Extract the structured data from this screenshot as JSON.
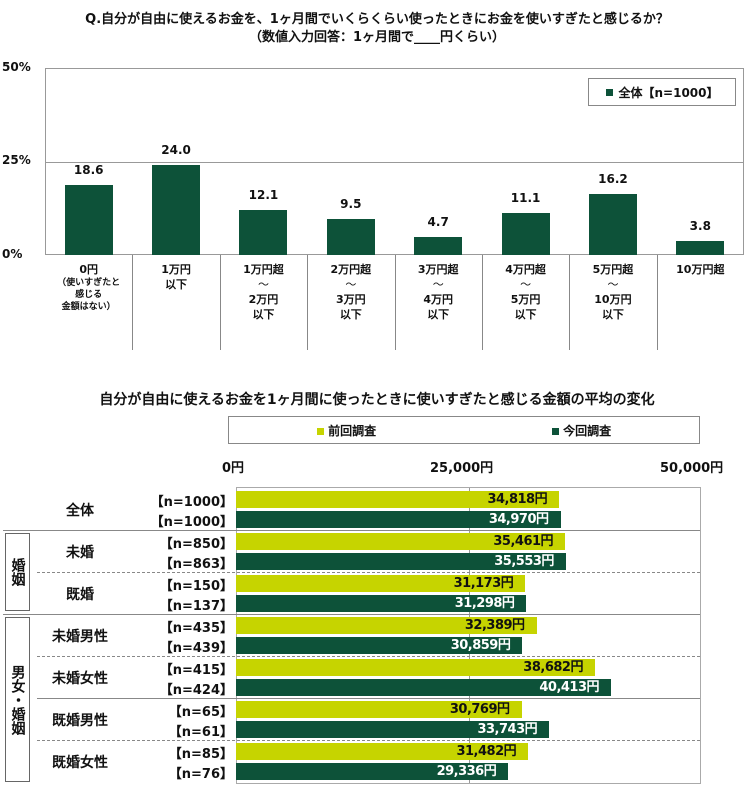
{
  "chart_data": [
    {
      "type": "bar",
      "title": "Q.自分が自由に使えるお金を、1ヶ月間でいくらくらい使ったときにお金を使いすぎたと感じるか？",
      "subtitle": "（数値入力回答：1ヶ月間で____円くらい）",
      "categories": [
        {
          "main": "0円",
          "sub": "（使いすぎたと感じる金額はない）"
        },
        {
          "main": "1万円以下"
        },
        {
          "main": "1万円超～2万円以下"
        },
        {
          "main": "2万円超～3万円以下"
        },
        {
          "main": "3万円超～4万円以下"
        },
        {
          "main": "4万円超～5万円以下"
        },
        {
          "main": "5万円超～10万円以下"
        },
        {
          "main": "10万円超"
        }
      ],
      "category_lines": [
        [
          "0円"
        ],
        [
          "1万円",
          "以下"
        ],
        [
          "1万円超",
          "～",
          "2万円",
          "以下"
        ],
        [
          "2万円超",
          "～",
          "3万円",
          "以下"
        ],
        [
          "3万円超",
          "～",
          "4万円",
          "以下"
        ],
        [
          "4万円超",
          "～",
          "5万円",
          "以下"
        ],
        [
          "5万円超",
          "～",
          "10万円",
          "以下"
        ],
        [
          "10万円超"
        ]
      ],
      "category0_sub_lines": [
        "（使いすぎたと",
        "感じる",
        "金額はない）"
      ],
      "series": [
        {
          "name": "全体【n=1000】",
          "values": [
            18.6,
            24.0,
            12.1,
            9.5,
            4.7,
            11.1,
            16.2,
            3.8
          ],
          "labels": [
            "18.6",
            "24.0",
            "12.1",
            "9.5",
            "4.7",
            "11.1",
            "16.2",
            "3.8"
          ],
          "color": "#0d5239"
        }
      ],
      "ylim": [
        0,
        50
      ],
      "yticks": [
        "0%",
        "25%",
        "50%"
      ],
      "legend": "top-right",
      "grid": true
    },
    {
      "type": "bar",
      "orientation": "horizontal",
      "title": "自分が自由に使えるお金を1ヶ月間に使ったときに使いすぎたと感じる金額の平均の変化",
      "xlim": [
        0,
        50000
      ],
      "xticks": [
        "0円",
        "25,000円",
        "50,000円"
      ],
      "legend": "top",
      "series_meta": [
        {
          "name": "前回調査",
          "color": "#c6d400"
        },
        {
          "name": "今回調査",
          "color": "#0d5239"
        }
      ],
      "groups": [
        {
          "side": "",
          "label": "全体",
          "n": [
            "【n=1000】",
            "【n=1000】"
          ],
          "values": [
            34818,
            34970
          ],
          "labels": [
            "34,818円",
            "34,970円"
          ]
        },
        {
          "side": "婚姻",
          "label": "未婚",
          "n": [
            "【n=850】",
            "【n=863】"
          ],
          "values": [
            35461,
            35553
          ],
          "labels": [
            "35,461円",
            "35,553円"
          ]
        },
        {
          "side": "婚姻",
          "label": "既婚",
          "n": [
            "【n=150】",
            "【n=137】"
          ],
          "values": [
            31173,
            31298
          ],
          "labels": [
            "31,173円",
            "31,298円"
          ]
        },
        {
          "side": "男女・婚姻",
          "label": "未婚男性",
          "n": [
            "【n=435】",
            "【n=439】"
          ],
          "values": [
            32389,
            30859
          ],
          "labels": [
            "32,389円",
            "30,859円"
          ]
        },
        {
          "side": "男女・婚姻",
          "label": "未婚女性",
          "n": [
            "【n=415】",
            "【n=424】"
          ],
          "values": [
            38682,
            40413
          ],
          "labels": [
            "38,682円",
            "40,413円"
          ]
        },
        {
          "side": "男女・婚姻",
          "label": "既婚男性",
          "n": [
            "【n=65】",
            "【n=61】"
          ],
          "values": [
            30769,
            33743
          ],
          "labels": [
            "30,769円",
            "33,743円"
          ]
        },
        {
          "side": "男女・婚姻",
          "label": "既婚女性",
          "n": [
            "【n=85】",
            "【n=76】"
          ],
          "values": [
            31482,
            29336
          ],
          "labels": [
            "31,482円",
            "29,336円"
          ]
        }
      ],
      "side_labels": [
        "婚姻",
        "男女・婚姻"
      ]
    }
  ]
}
